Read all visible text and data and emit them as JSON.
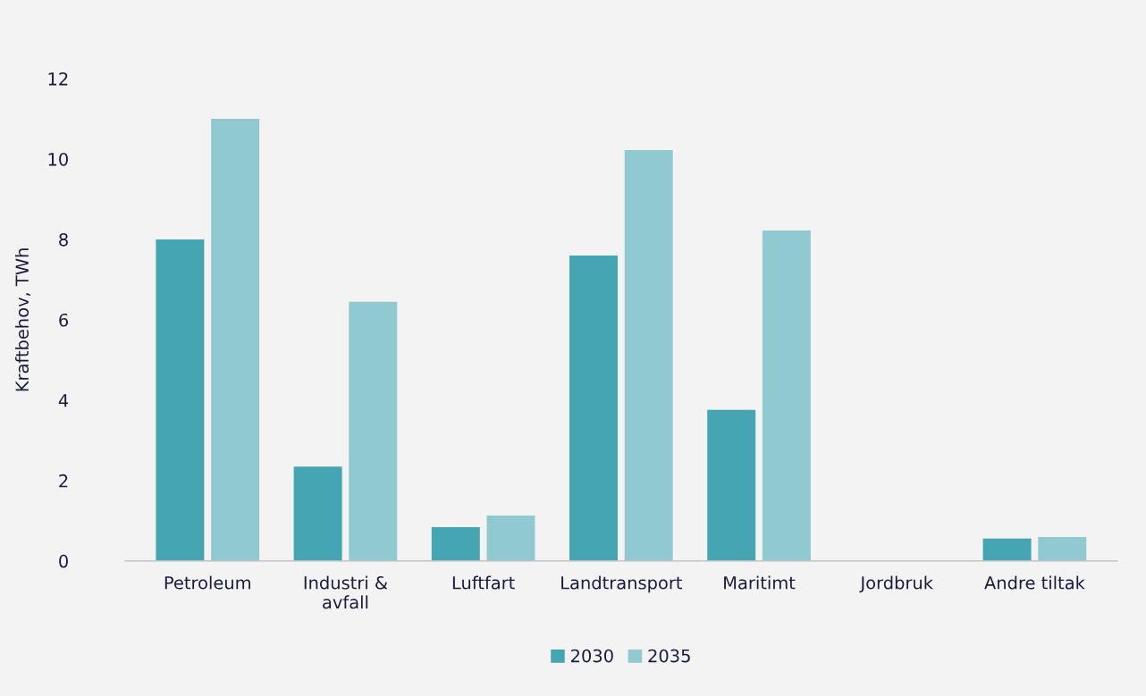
{
  "chart_data": {
    "type": "bar",
    "ylabel": "Kraftbehov, TWh",
    "categories": [
      "Petroleum",
      "Industri &\navfall",
      "Luftfart",
      "Landtransport",
      "Maritimt",
      "Jordbruk",
      "Andre tiltak"
    ],
    "series": [
      {
        "name": "2030",
        "color": "#45a5b2",
        "values": [
          8.0,
          2.35,
          0.84,
          7.6,
          3.76,
          0,
          0.56
        ]
      },
      {
        "name": "2035",
        "color": "#90c9d0",
        "values": [
          11.0,
          6.45,
          1.13,
          10.22,
          8.22,
          0,
          0.6
        ]
      }
    ],
    "ylim": [
      0,
      12
    ],
    "yticks": [
      0,
      2,
      4,
      6,
      8,
      10,
      12
    ],
    "grid": false,
    "legend": "bottom"
  }
}
